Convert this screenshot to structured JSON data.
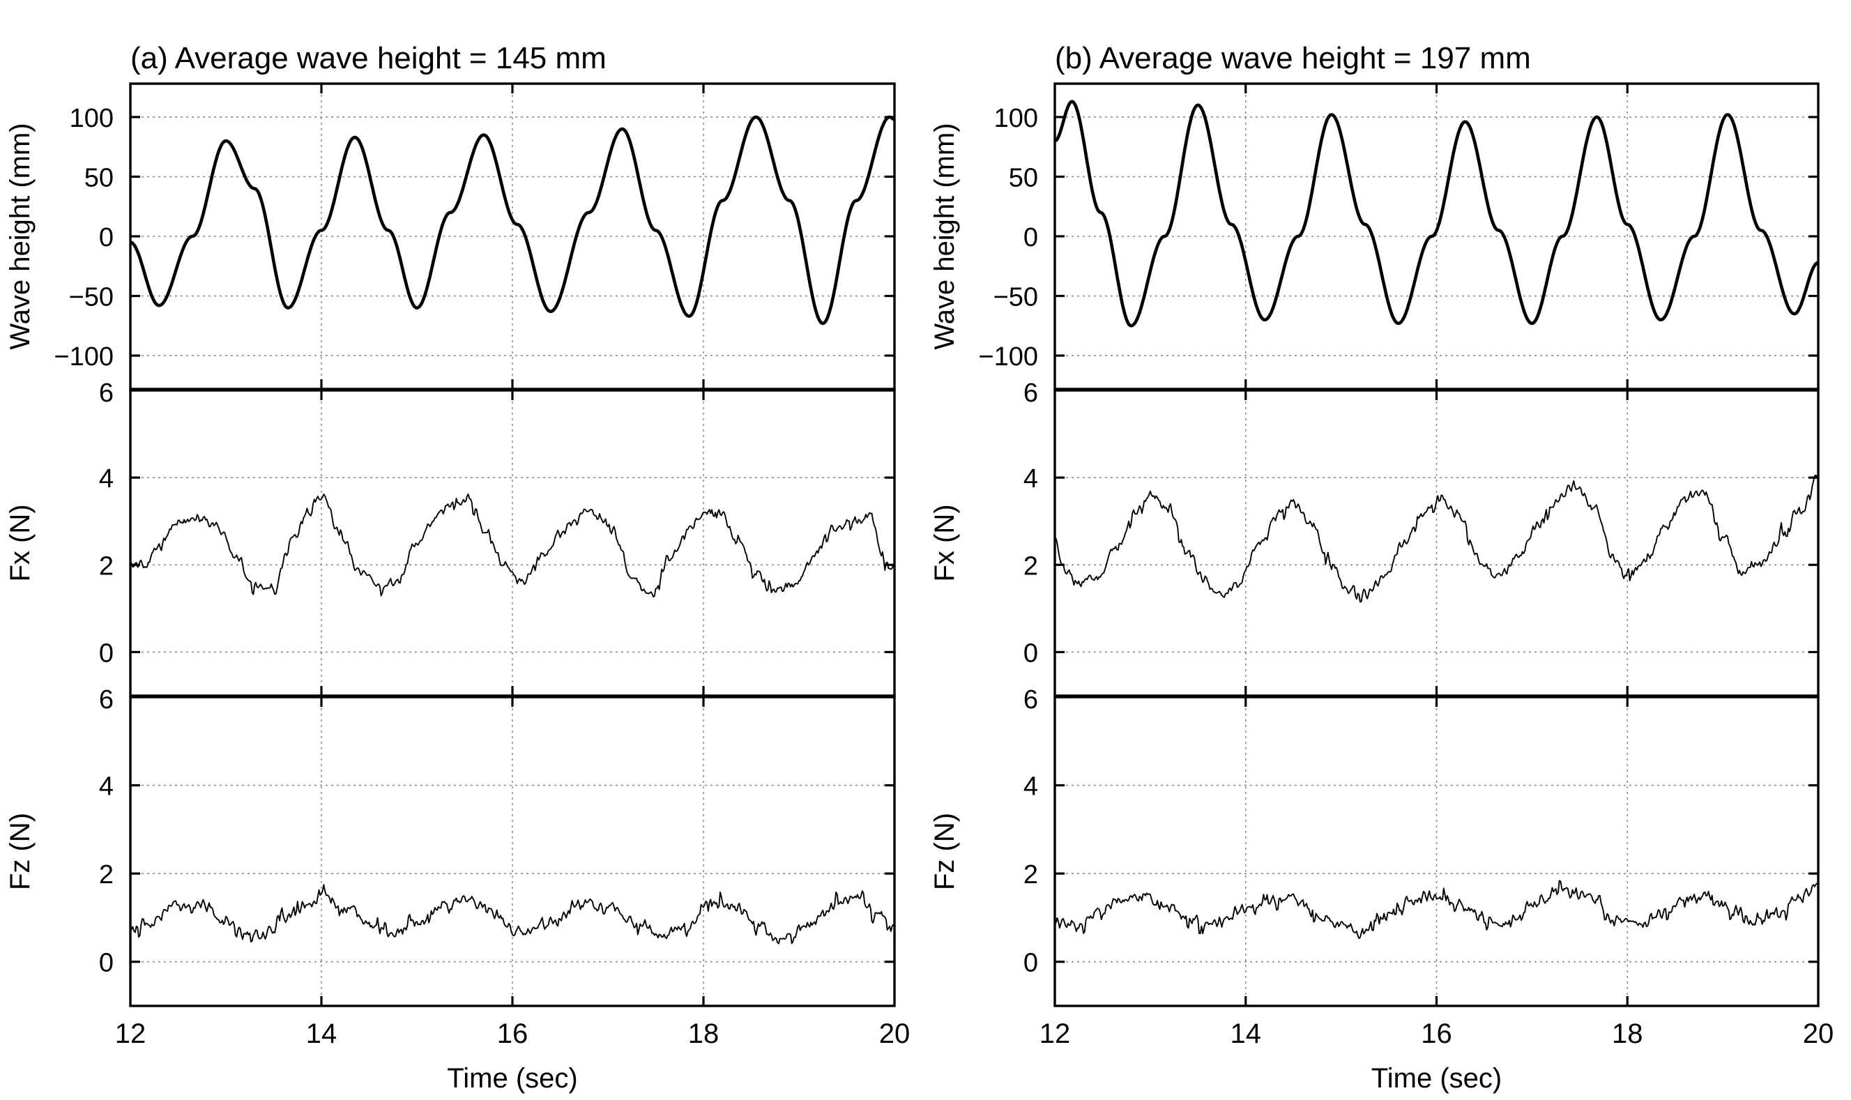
{
  "chart_data": [
    {
      "type": "line",
      "title": "(a) Average wave height = 145 mm",
      "xlabel": "Time (sec)",
      "xlim": [
        12,
        20
      ],
      "xticks": [
        12,
        14,
        16,
        18,
        20
      ],
      "xtick_labels": [
        "12",
        "14",
        "16",
        "18",
        "20"
      ],
      "subplots": [
        {
          "name": "wave",
          "ylabel": "Wave height (mm)",
          "ylim": [
            -128,
            128
          ],
          "yticks": [
            -100,
            -50,
            0,
            50,
            100
          ],
          "ytick_labels": [
            "−100",
            "−50",
            "0",
            "50",
            "100"
          ],
          "series": [
            {
              "name": "Wave height",
              "x": [
                12.0,
                12.3,
                12.65,
                13.0,
                13.3,
                13.65,
                14.0,
                14.35,
                14.7,
                15.0,
                15.35,
                15.7,
                16.05,
                16.4,
                16.8,
                17.15,
                17.5,
                17.85,
                18.2,
                18.55,
                18.9,
                19.25,
                19.6,
                19.95,
                20.0
              ],
              "y": [
                -5,
                -58,
                0,
                80,
                40,
                -60,
                5,
                83,
                5,
                -60,
                20,
                85,
                10,
                -63,
                20,
                90,
                5,
                -67,
                30,
                100,
                30,
                -73,
                30,
                100,
                98
              ]
            }
          ]
        },
        {
          "name": "fx",
          "ylabel": "Fx (N)",
          "ylim": [
            -1,
            6
          ],
          "yticks": [
            0,
            2,
            4,
            6
          ],
          "ytick_labels": [
            "0",
            "2",
            "4",
            "6"
          ],
          "series": [
            {
              "name": "Fx",
              "x": [
                12.0,
                12.15,
                12.3,
                12.5,
                12.7,
                12.9,
                13.1,
                13.3,
                13.5,
                13.7,
                13.85,
                14.0,
                14.2,
                14.4,
                14.6,
                14.8,
                15.0,
                15.2,
                15.4,
                15.55,
                15.7,
                15.9,
                16.1,
                16.3,
                16.55,
                16.75,
                16.9,
                17.05,
                17.25,
                17.45,
                17.65,
                17.85,
                18.0,
                18.15,
                18.35,
                18.55,
                18.75,
                18.95,
                19.15,
                19.35,
                19.55,
                19.75,
                19.9,
                20.0
              ],
              "y": [
                2.0,
                2.0,
                2.4,
                3.0,
                3.1,
                2.9,
                2.2,
                1.5,
                1.5,
                2.6,
                3.2,
                3.6,
                2.7,
                1.8,
                1.5,
                1.6,
                2.5,
                3.1,
                3.4,
                3.5,
                2.8,
                2.1,
                1.6,
                2.2,
                2.8,
                3.2,
                3.1,
                2.8,
                1.7,
                1.3,
                2.2,
                2.8,
                3.2,
                3.3,
                2.6,
                1.8,
                1.4,
                1.5,
                2.2,
                2.8,
                3.0,
                3.1,
                2.1,
                1.9
              ]
            }
          ]
        },
        {
          "name": "fz",
          "ylabel": "Fz (N)",
          "ylim": [
            -1,
            6
          ],
          "yticks": [
            0,
            2,
            4,
            6
          ],
          "ytick_labels": [
            "0",
            "2",
            "4",
            "6"
          ],
          "series": [
            {
              "name": "Fz",
              "x": [
                12.0,
                12.2,
                12.5,
                12.75,
                13.0,
                13.2,
                13.4,
                13.6,
                13.85,
                14.0,
                14.3,
                14.5,
                14.75,
                15.0,
                15.3,
                15.55,
                15.8,
                16.0,
                16.4,
                16.7,
                17.0,
                17.3,
                17.6,
                17.8,
                18.1,
                18.35,
                18.6,
                18.8,
                19.1,
                19.4,
                19.6,
                19.8,
                20.0
              ],
              "y": [
                0.7,
                0.9,
                1.3,
                1.3,
                0.9,
                0.6,
                0.6,
                1.0,
                1.4,
                1.5,
                1.2,
                0.8,
                0.6,
                0.9,
                1.3,
                1.4,
                1.1,
                0.7,
                0.9,
                1.3,
                1.3,
                0.9,
                0.6,
                0.8,
                1.3,
                1.2,
                0.8,
                0.5,
                0.8,
                1.3,
                1.5,
                1.1,
                0.8
              ]
            }
          ]
        }
      ]
    },
    {
      "type": "line",
      "title": "(b) Average wave height = 197 mm",
      "xlabel": "Time (sec)",
      "xlim": [
        12,
        20
      ],
      "xticks": [
        12,
        14,
        16,
        18,
        20
      ],
      "xtick_labels": [
        "12",
        "14",
        "16",
        "18",
        "20"
      ],
      "subplots": [
        {
          "name": "wave",
          "ylabel": "Wave height (mm)",
          "ylim": [
            -128,
            128
          ],
          "yticks": [
            -100,
            -50,
            0,
            50,
            100
          ],
          "ytick_labels": [
            "−100",
            "−50",
            "0",
            "50",
            "100"
          ],
          "series": [
            {
              "name": "Wave height",
              "x": [
                12.0,
                12.18,
                12.48,
                12.8,
                13.15,
                13.5,
                13.85,
                14.2,
                14.55,
                14.9,
                15.25,
                15.6,
                15.95,
                16.3,
                16.65,
                17.0,
                17.32,
                17.68,
                18.0,
                18.35,
                18.7,
                19.05,
                19.4,
                19.75,
                20.0
              ],
              "y": [
                80,
                113,
                20,
                -75,
                0,
                110,
                10,
                -70,
                0,
                102,
                10,
                -73,
                0,
                96,
                5,
                -73,
                0,
                100,
                10,
                -70,
                0,
                102,
                5,
                -65,
                -22
              ]
            }
          ]
        },
        {
          "name": "fx",
          "ylabel": "Fx (N)",
          "ylim": [
            -1,
            6
          ],
          "yticks": [
            0,
            2,
            4,
            6
          ],
          "ytick_labels": [
            "0",
            "2",
            "4",
            "6"
          ],
          "series": [
            {
              "name": "Fx",
              "x": [
                12.0,
                12.1,
                12.25,
                12.45,
                12.65,
                12.85,
                13.0,
                13.2,
                13.4,
                13.55,
                13.7,
                13.9,
                14.15,
                14.35,
                14.5,
                14.7,
                14.9,
                15.05,
                15.25,
                15.45,
                15.65,
                15.85,
                16.05,
                16.25,
                16.45,
                16.65,
                16.85,
                17.05,
                17.25,
                17.45,
                17.65,
                17.85,
                18.0,
                18.2,
                18.4,
                18.6,
                18.8,
                19.0,
                19.2,
                19.4,
                19.6,
                19.8,
                20.0
              ],
              "y": [
                2.6,
                1.9,
                1.6,
                1.7,
                2.4,
                3.2,
                3.6,
                3.3,
                2.3,
                1.7,
                1.3,
                1.5,
                2.5,
                3.2,
                3.4,
                2.9,
                2.0,
                1.4,
                1.3,
                1.7,
                2.5,
                3.2,
                3.5,
                3.1,
                2.1,
                1.7,
                2.2,
                2.9,
                3.5,
                3.8,
                3.3,
                2.2,
                1.8,
                2.1,
                2.9,
                3.5,
                3.7,
                2.7,
                1.8,
                2.0,
                2.6,
                3.2,
                4.0
              ]
            }
          ]
        },
        {
          "name": "fz",
          "ylabel": "Fz (N)",
          "ylim": [
            -1,
            6
          ],
          "yticks": [
            0,
            2,
            4,
            6
          ],
          "ytick_labels": [
            "0",
            "2",
            "4",
            "6"
          ],
          "series": [
            {
              "name": "Fz",
              "x": [
                12.0,
                12.2,
                12.45,
                12.7,
                12.95,
                13.2,
                13.45,
                13.7,
                14.0,
                14.25,
                14.5,
                14.75,
                15.0,
                15.2,
                15.45,
                15.7,
                16.0,
                16.2,
                16.5,
                16.75,
                17.0,
                17.3,
                17.6,
                17.85,
                18.1,
                18.35,
                18.6,
                18.85,
                19.1,
                19.35,
                19.6,
                19.8,
                20.0
              ],
              "y": [
                0.9,
                0.8,
                1.1,
                1.4,
                1.5,
                1.2,
                0.9,
                0.9,
                1.2,
                1.4,
                1.4,
                1.1,
                0.8,
                0.6,
                1.0,
                1.4,
                1.5,
                1.3,
                1.0,
                0.9,
                1.3,
                1.6,
                1.5,
                1.0,
                0.8,
                1.1,
                1.4,
                1.5,
                1.2,
                0.9,
                1.1,
                1.5,
                1.8
              ]
            }
          ]
        }
      ]
    }
  ]
}
